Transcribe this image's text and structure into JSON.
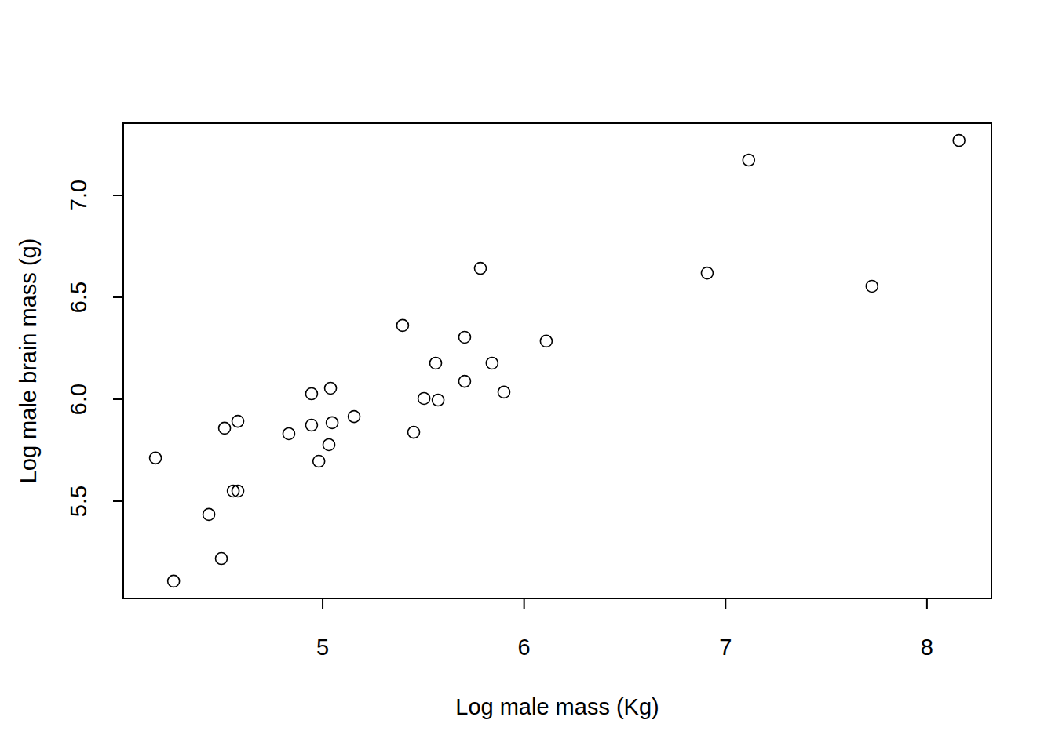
{
  "chart_data": {
    "type": "scatter",
    "x_label": "Log male mass (Kg)",
    "y_label": "Log male brain mass (g)",
    "x": [
      4.17,
      4.26,
      4.435,
      4.497,
      4.513,
      4.556,
      4.579,
      4.579,
      4.832,
      4.945,
      4.945,
      4.981,
      5.031,
      5.039,
      5.047,
      5.156,
      5.397,
      5.452,
      5.503,
      5.561,
      5.573,
      5.705,
      5.705,
      5.783,
      5.841,
      5.9,
      6.11,
      6.909,
      7.115,
      7.727,
      8.159
    ],
    "y": [
      5.712,
      5.108,
      5.435,
      5.219,
      5.858,
      5.55,
      5.55,
      5.892,
      5.831,
      6.027,
      5.873,
      5.696,
      5.777,
      6.054,
      5.885,
      5.915,
      6.362,
      5.838,
      6.004,
      6.177,
      5.996,
      6.088,
      6.304,
      6.642,
      6.177,
      6.035,
      6.285,
      6.619,
      7.173,
      6.554,
      7.269
    ],
    "xlim": [
      4.01,
      8.32
    ],
    "ylim": [
      5.023,
      7.354
    ],
    "xticks": [
      5,
      6,
      7,
      8
    ],
    "yticks": [
      5.5,
      {
        "value": 6.0,
        "label": "6.0"
      },
      6.5,
      {
        "value": 7.0,
        "label": "7.0"
      }
    ],
    "marker": "circle",
    "color": "#000000",
    "grid": false
  }
}
